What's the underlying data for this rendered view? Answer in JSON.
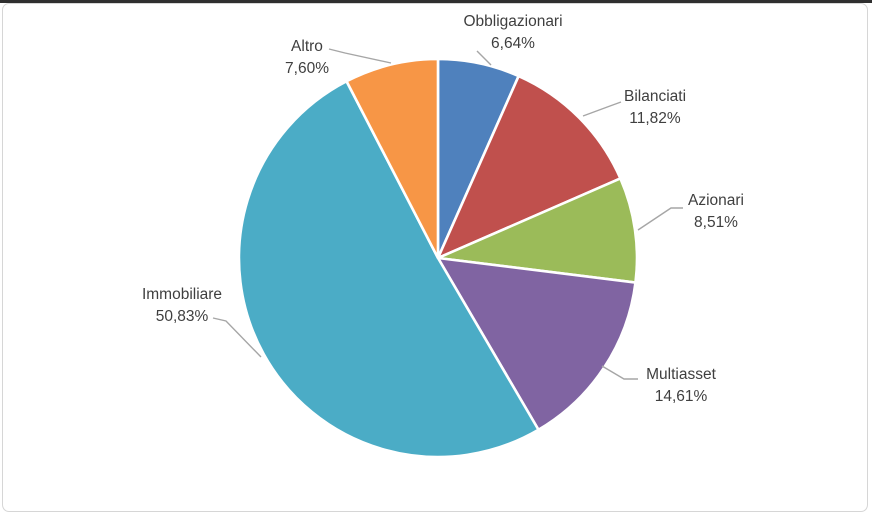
{
  "window": {
    "background": "#FFFFFF",
    "frame_border_color": "#D6D6D6",
    "top_edge_color": "#2F2F2F"
  },
  "chart_data": {
    "type": "pie",
    "categories": [
      "Obbligazionari",
      "Bilanciati",
      "Azionari",
      "Multiasset",
      "Immobiliare",
      "Altro"
    ],
    "values": [
      6.64,
      11.82,
      8.51,
      14.61,
      50.83,
      7.6
    ],
    "slices": [
      {
        "name": "Obbligazionari",
        "value": 6.64,
        "pct_label": "6,64%",
        "color": "#4F81BD"
      },
      {
        "name": "Bilanciati",
        "value": 11.82,
        "pct_label": "11,82%",
        "color": "#C0504D"
      },
      {
        "name": "Azionari",
        "value": 8.51,
        "pct_label": "8,51%",
        "color": "#9BBB59"
      },
      {
        "name": "Multiasset",
        "value": 14.61,
        "pct_label": "14,61%",
        "color": "#8064A2"
      },
      {
        "name": "Immobiliare",
        "value": 50.83,
        "pct_label": "50,83%",
        "color": "#4BACC6"
      },
      {
        "name": "Altro",
        "value": 7.6,
        "pct_label": "7,60%",
        "color": "#F79646"
      }
    ],
    "start_angle_deg": 0,
    "direction": "clockwise",
    "legend": "none",
    "slice_border_color": "#FFFFFF",
    "leader_line_color": "#A6A6A6",
    "label_text_color": "#3F3F3F"
  }
}
